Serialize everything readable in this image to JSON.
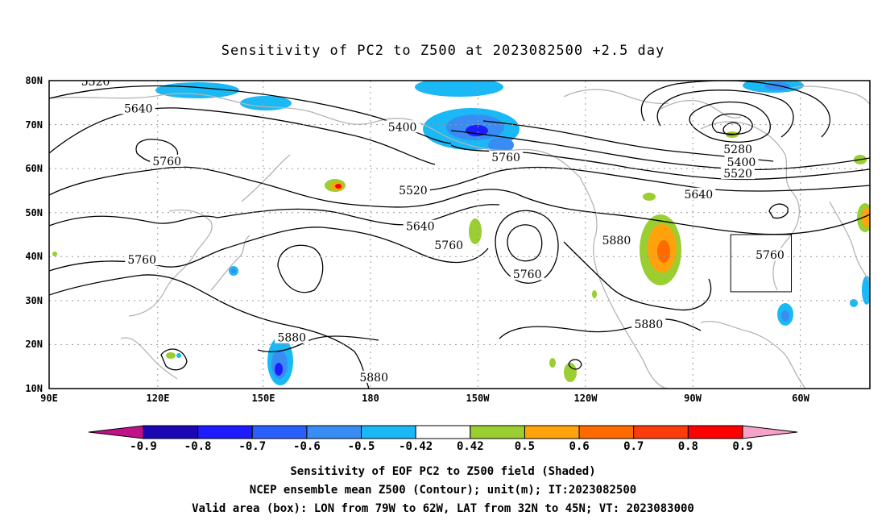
{
  "title": "Sensitivity of PC2 to Z500 at 2023082500 +2.5 day",
  "lat_ticks": [
    "80N",
    "70N",
    "60N",
    "50N",
    "40N",
    "30N",
    "20N",
    "10N"
  ],
  "lon_ticks": [
    "90E",
    "120E",
    "150E",
    "180",
    "150W",
    "120W",
    "90W",
    "60W"
  ],
  "contour_labels": [
    {
      "text": "5520",
      "lon": 103,
      "lat": 79.8
    },
    {
      "text": "5640",
      "lon": 115,
      "lat": 73.7
    },
    {
      "text": "5760",
      "lon": 123,
      "lat": 61.7
    },
    {
      "text": "5760",
      "lon": 116,
      "lat": 39.3
    },
    {
      "text": "5400",
      "lon": 189,
      "lat": 69.5
    },
    {
      "text": "5520",
      "lon": 192,
      "lat": 55.1
    },
    {
      "text": "5640",
      "lon": 194,
      "lat": 46.9
    },
    {
      "text": "5760",
      "lon": 202,
      "lat": 42.6
    },
    {
      "text": "5760",
      "lon": 218,
      "lat": 62.6
    },
    {
      "text": "5760",
      "lon": 224,
      "lat": 36.0
    },
    {
      "text": "5880",
      "lon": 249,
      "lat": 43.7
    },
    {
      "text": "5880",
      "lon": 258,
      "lat": 24.7
    },
    {
      "text": "5880",
      "lon": 158,
      "lat": 21.6
    },
    {
      "text": "5880",
      "lon": 181,
      "lat": 12.6
    },
    {
      "text": "5280",
      "lon": 283,
      "lat": 64.4
    },
    {
      "text": "5400",
      "lon": 284,
      "lat": 61.5
    },
    {
      "text": "5520",
      "lon": 283,
      "lat": 58.9
    },
    {
      "text": "5640",
      "lon": 272,
      "lat": 54.2
    },
    {
      "text": "5760",
      "lon": 292,
      "lat": 40.4
    }
  ],
  "valid_box": {
    "lon_min": -79,
    "lon_max": -62,
    "lat_min": 32,
    "lat_max": 45
  },
  "colorbar": {
    "labels": [
      "-0.9",
      "-0.8",
      "-0.7",
      "-0.6",
      "-0.5",
      "-0.42",
      "0.42",
      "0.5",
      "0.6",
      "0.7",
      "0.8",
      "0.9"
    ],
    "colors": [
      "#1b08b4",
      "#1c1cff",
      "#2a5ffb",
      "#3a8cf5",
      "#1ab8f5",
      "#ffffff",
      "#9ace31",
      "#ffa20b",
      "#ff6a00",
      "#fb3c0c",
      "#ff0000"
    ],
    "low_extend_color": "#c0108a",
    "high_extend_color": "#f4a2c8"
  },
  "caption": [
    "Sensitivity of EOF PC2 to Z500 field (Shaded)",
    "NCEP ensemble mean Z500 (Contour); unit(m); IT:2023082500",
    "Valid area (box): LON from 79W to 62W, LAT from 32N to 45N; VT: 2023083000"
  ]
}
